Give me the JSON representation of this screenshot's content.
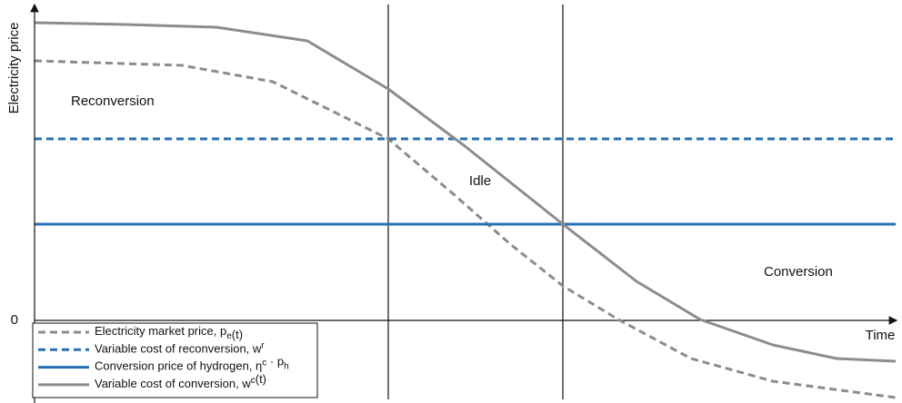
{
  "chart_data": {
    "type": "line",
    "ylabel": "Electricity price",
    "xlabel": "Time",
    "xlim": [
      0,
      9.5
    ],
    "ylim": [
      -0.9,
      3.5
    ],
    "yticks": [
      0
    ],
    "grid": false,
    "legend": "lower left",
    "vlines": [
      3.89,
      5.81
    ],
    "regions": [
      "Reconversion",
      "Idle",
      "Conversion"
    ],
    "series": [
      {
        "name": [
          "Electricity market price, p",
          {
            "sub": "e"
          },
          "(t)"
        ],
        "color": "#8c8c8c",
        "dash": true,
        "x": [
          0,
          1.62,
          2.62,
          3.89,
          4.62,
          5.22,
          5.81,
          6.42,
          7.22,
          8.12,
          9.47
        ],
        "values": [
          2.86,
          2.81,
          2.63,
          2.0,
          1.38,
          0.85,
          0.38,
          0.01,
          -0.42,
          -0.67,
          -0.85
        ]
      },
      {
        "name": [
          "Variable cost of reconversion, w",
          {
            "sup": "r"
          }
        ],
        "color": "#2870b4",
        "dash": true,
        "x": [
          0,
          9.47
        ],
        "values": [
          2.0,
          2.0
        ]
      },
      {
        "name": [
          "Conversion price of hydrogen, η",
          {
            "sup": "c"
          },
          " · p",
          {
            "sub": "h"
          }
        ],
        "color": "#2870b4",
        "dash": false,
        "x": [
          0,
          9.47
        ],
        "values": [
          1.06,
          1.06
        ]
      },
      {
        "name": [
          "Variable cost of conversion, w",
          {
            "sup": "c"
          },
          "(t)"
        ],
        "color": "#8c8c8c",
        "dash": false,
        "x": [
          0,
          1,
          2,
          3,
          3.89,
          4.72,
          5.81,
          6.62,
          7.32,
          8.12,
          8.82,
          9.47
        ],
        "values": [
          3.28,
          3.26,
          3.23,
          3.08,
          2.55,
          1.93,
          1.06,
          0.43,
          0.01,
          -0.27,
          -0.42,
          -0.45
        ]
      }
    ]
  }
}
